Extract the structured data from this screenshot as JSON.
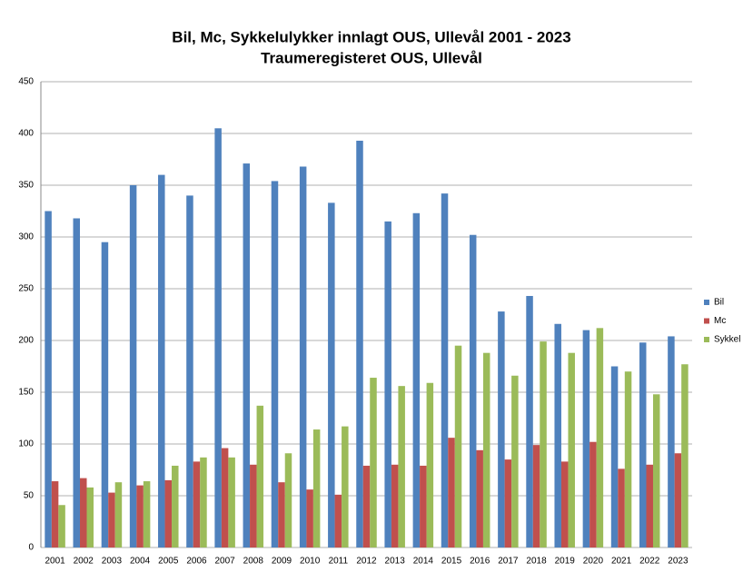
{
  "chart_data": {
    "type": "bar",
    "title": "Bil, Mc, Sykkelulykker innlagt OUS, Ullevål 2001 - 2023",
    "subtitle": "Traumeregisteret OUS, Ullevål",
    "categories": [
      "2001",
      "2002",
      "2003",
      "2004",
      "2005",
      "2006",
      "2007",
      "2008",
      "2009",
      "2010",
      "2011",
      "2012",
      "2013",
      "2014",
      "2015",
      "2016",
      "2017",
      "2018",
      "2019",
      "2020",
      "2021",
      "2022",
      "2023"
    ],
    "series": [
      {
        "name": "Bil",
        "color": "#4f81bd",
        "values": [
          325,
          318,
          295,
          350,
          360,
          340,
          405,
          371,
          354,
          368,
          333,
          393,
          315,
          323,
          342,
          302,
          228,
          243,
          216,
          210,
          175,
          198,
          204
        ]
      },
      {
        "name": "Mc",
        "color": "#c0504d",
        "values": [
          64,
          67,
          53,
          60,
          65,
          83,
          96,
          80,
          63,
          56,
          51,
          79,
          80,
          79,
          106,
          94,
          85,
          99,
          83,
          102,
          76,
          80,
          91
        ]
      },
      {
        "name": "Sykkel",
        "color": "#9bbb59",
        "values": [
          41,
          58,
          63,
          64,
          79,
          87,
          87,
          137,
          91,
          114,
          117,
          164,
          156,
          159,
          195,
          188,
          166,
          199,
          188,
          212,
          170,
          148,
          177
        ]
      }
    ],
    "ylim": [
      0,
      450
    ],
    "yticks": [
      0,
      50,
      100,
      150,
      200,
      250,
      300,
      350,
      400,
      450
    ],
    "grid": true,
    "legend": "right"
  }
}
